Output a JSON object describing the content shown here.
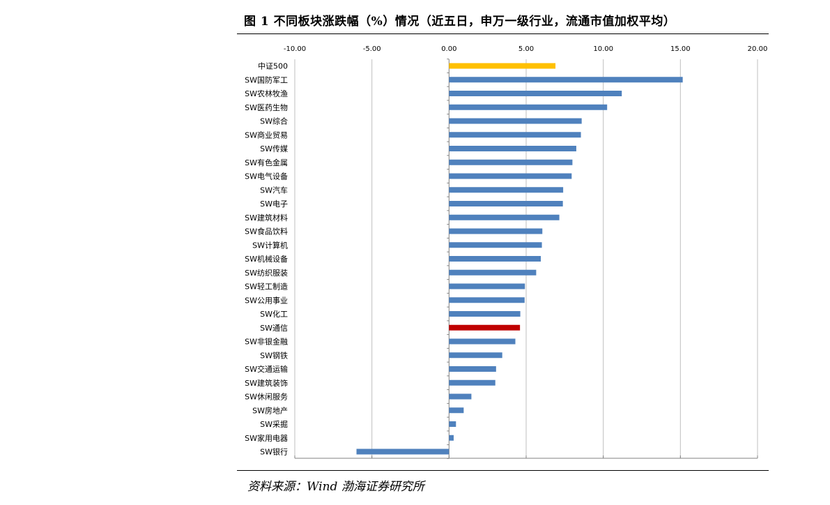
{
  "title": "图 1 不同板块涨跌幅（%）情况（近五日，申万一级行业，流通市值加权平均）",
  "source": "资料来源：Wind  渤海证券研究所",
  "colors": {
    "default_bar": "#4f81bd",
    "benchmark_bar": "#ffc000",
    "highlight_bar": "#c00000",
    "gridline": "#bfbfbf",
    "axis": "#808080"
  },
  "chart_data": {
    "type": "bar",
    "orientation": "horizontal",
    "xlim": [
      -10,
      20
    ],
    "xticks": [
      -10,
      -5,
      0,
      5,
      10,
      15,
      20
    ],
    "xtick_labels": [
      "-10.00",
      "-5.00",
      "0.00",
      "5.00",
      "10.00",
      "15.00",
      "20.00"
    ],
    "xaxis_position": "top",
    "grid": true,
    "categories": [
      "中证500",
      "SW国防军工",
      "SW农林牧渔",
      "SW医药生物",
      "SW综合",
      "SW商业贸易",
      "SW传媒",
      "SW有色金属",
      "SW电气设备",
      "SW汽车",
      "SW电子",
      "SW建筑材料",
      "SW食品饮料",
      "SW计算机",
      "SW机械设备",
      "SW纺织服装",
      "SW轻工制造",
      "SW公用事业",
      "SW化工",
      "SW通信",
      "SW非银金融",
      "SW钢铁",
      "SW交通运输",
      "SW建筑装饰",
      "SW休闲服务",
      "SW房地产",
      "SW采掘",
      "SW家用电器",
      "SW银行"
    ],
    "values": [
      6.9,
      15.15,
      11.2,
      10.25,
      8.6,
      8.55,
      8.25,
      8.0,
      7.95,
      7.4,
      7.38,
      7.15,
      6.05,
      6.02,
      5.95,
      5.65,
      4.92,
      4.9,
      4.62,
      4.6,
      4.3,
      3.45,
      3.05,
      3.0,
      1.45,
      0.95,
      0.45,
      0.3,
      -6.0
    ],
    "bar_colors": [
      "benchmark_bar",
      "default_bar",
      "default_bar",
      "default_bar",
      "default_bar",
      "default_bar",
      "default_bar",
      "default_bar",
      "default_bar",
      "default_bar",
      "default_bar",
      "default_bar",
      "default_bar",
      "default_bar",
      "default_bar",
      "default_bar",
      "default_bar",
      "default_bar",
      "default_bar",
      "highlight_bar",
      "default_bar",
      "default_bar",
      "default_bar",
      "default_bar",
      "default_bar",
      "default_bar",
      "default_bar",
      "default_bar",
      "default_bar"
    ]
  }
}
